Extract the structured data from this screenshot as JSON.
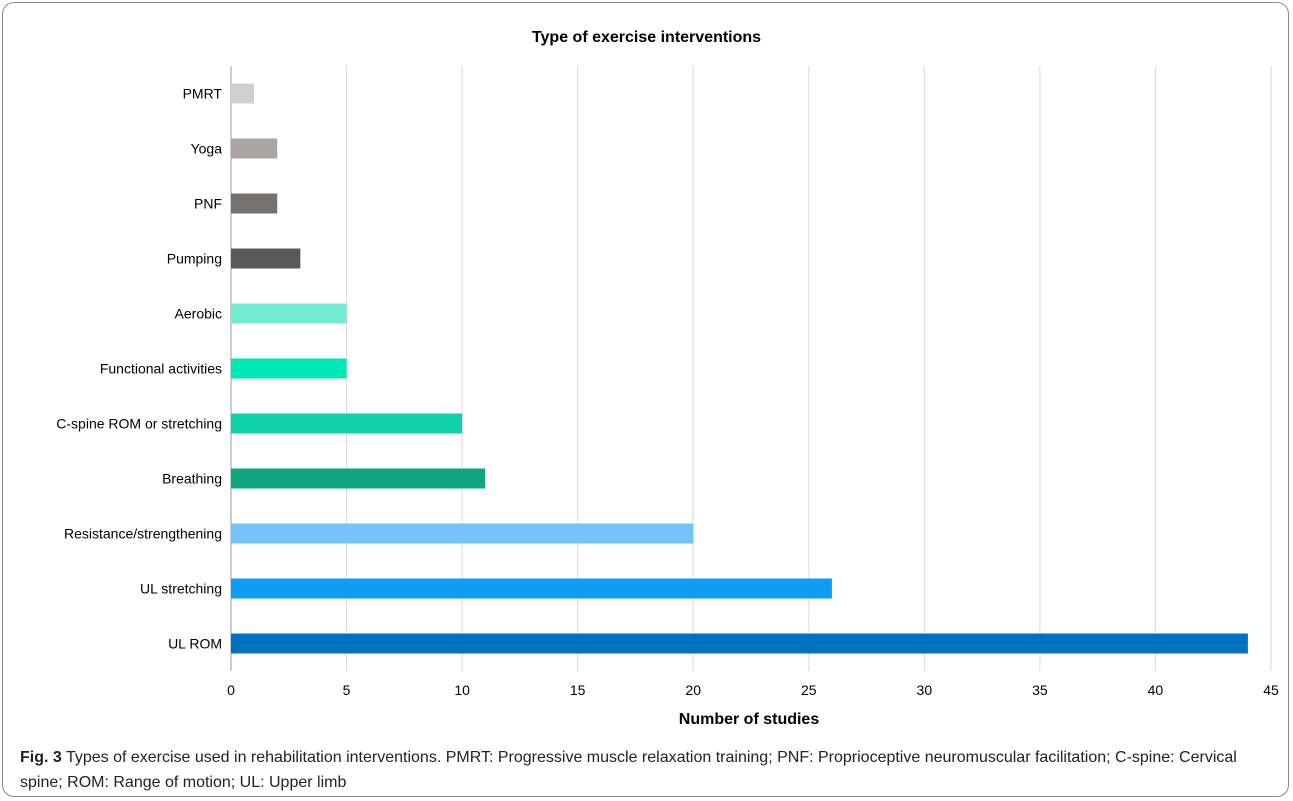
{
  "chart_data": {
    "type": "bar",
    "orientation": "horizontal",
    "title": "Type of exercise interventions",
    "xlabel": "Number of studies",
    "ylabel": "",
    "xlim": [
      0,
      45
    ],
    "xticks": [
      0,
      5,
      10,
      15,
      20,
      25,
      30,
      35,
      40,
      45
    ],
    "grid": true,
    "categories": [
      "PMRT",
      "Yoga",
      "PNF",
      "Pumping",
      "Aerobic",
      "Functional activities",
      "C-spine ROM or stretching",
      "Breathing",
      "Resistance/strengthening",
      "UL stretching",
      "UL ROM"
    ],
    "values": [
      1,
      2,
      2,
      3,
      5,
      5,
      10,
      11,
      20,
      26,
      44
    ],
    "colors": [
      "#cfcfcf",
      "#aaa6a6",
      "#767171",
      "#595959",
      "#72ecd0",
      "#00e8b5",
      "#0fd1a9",
      "#0fa57f",
      "#74c4fb",
      "#109cf4",
      "#0070c1"
    ]
  },
  "caption": {
    "fig_label": "Fig. 3",
    "text": "Types of exercise used in rehabilitation interventions. PMRT: Progressive muscle relaxation training; PNF: Proprioceptive neuromuscular facilitation; C-spine: Cervical spine; ROM: Range of motion; UL: Upper limb"
  }
}
